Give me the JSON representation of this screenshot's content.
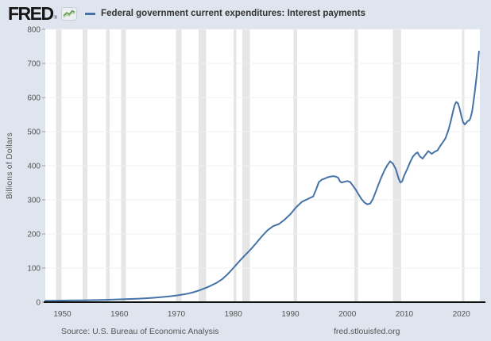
{
  "header": {
    "logo_text": "FRED",
    "registered_mark": "®",
    "legend_label": "Federal government current expenditures: Interest payments"
  },
  "footer": {
    "source": "Source: U.S. Bureau of Economic Analysis",
    "site_url": "fred.stlouisfed.org"
  },
  "colors": {
    "page_background": "#dee5ef",
    "plot_background": "#ffffff",
    "line": "#4572a7",
    "gridline": "#f0f0f0",
    "recession_band": "#e6e6e6",
    "axis_line": "#111111",
    "tick_mark": "#999999",
    "tick_text": "#555555",
    "logo_icon_green": "#5d9c45"
  },
  "chart_data": {
    "type": "line",
    "title": "Federal government current expenditures: Interest payments",
    "xlabel": "",
    "ylabel": "Billions of Dollars",
    "xlim": [
      1947,
      2023.25
    ],
    "ylim": [
      0,
      800
    ],
    "x_ticks": [
      1950,
      1960,
      1970,
      1980,
      1990,
      2000,
      2010,
      2020
    ],
    "y_ticks": [
      0,
      100,
      200,
      300,
      400,
      500,
      600,
      700,
      800
    ],
    "grid": "horizontal",
    "legend_position": "top-left",
    "recession_shading": [
      [
        1948.87,
        1949.83
      ],
      [
        1953.54,
        1954.38
      ],
      [
        1957.63,
        1958.29
      ],
      [
        1960.29,
        1961.13
      ],
      [
        1969.96,
        1970.88
      ],
      [
        1973.88,
        1975.21
      ],
      [
        1980.04,
        1980.54
      ],
      [
        1981.54,
        1982.88
      ],
      [
        1990.54,
        1991.21
      ],
      [
        2001.21,
        2001.88
      ],
      [
        2007.96,
        2009.46
      ],
      [
        2020.08,
        2020.45
      ]
    ],
    "series": [
      {
        "name": "Federal government current expenditures: Interest payments",
        "color": "#4572a7",
        "units": "Billions of Dollars",
        "points": [
          [
            1947,
            4
          ],
          [
            1948,
            4.3
          ],
          [
            1949,
            4.5
          ],
          [
            1950,
            4.7
          ],
          [
            1951,
            4.9
          ],
          [
            1952,
            5.1
          ],
          [
            1953,
            5.3
          ],
          [
            1954,
            5.5
          ],
          [
            1955,
            5.8
          ],
          [
            1956,
            6.1
          ],
          [
            1957,
            6.5
          ],
          [
            1958,
            6.9
          ],
          [
            1959,
            7.5
          ],
          [
            1960,
            8.1
          ],
          [
            1961,
            8.6
          ],
          [
            1962,
            9.2
          ],
          [
            1963,
            9.9
          ],
          [
            1964,
            10.7
          ],
          [
            1965,
            11.6
          ],
          [
            1966,
            12.8
          ],
          [
            1967,
            14.1
          ],
          [
            1968,
            15.7
          ],
          [
            1969,
            17.5
          ],
          [
            1970,
            19.5
          ],
          [
            1971,
            22
          ],
          [
            1972,
            25
          ],
          [
            1973,
            29
          ],
          [
            1974,
            34.5
          ],
          [
            1975,
            41
          ],
          [
            1976,
            48
          ],
          [
            1977,
            56
          ],
          [
            1978,
            67
          ],
          [
            1979,
            82
          ],
          [
            1980,
            100
          ],
          [
            1981,
            119
          ],
          [
            1982,
            137
          ],
          [
            1983,
            154
          ],
          [
            1984,
            173
          ],
          [
            1985,
            193
          ],
          [
            1986,
            211
          ],
          [
            1987,
            223
          ],
          [
            1988,
            229
          ],
          [
            1989,
            242
          ],
          [
            1990,
            258
          ],
          [
            1991,
            278
          ],
          [
            1992,
            294
          ],
          [
            1993,
            302
          ],
          [
            1994,
            310
          ],
          [
            1994.5,
            330
          ],
          [
            1995,
            352
          ],
          [
            1995.5,
            359
          ],
          [
            1996,
            362
          ],
          [
            1996.5,
            366
          ],
          [
            1997,
            368
          ],
          [
            1997.5,
            369.5
          ],
          [
            1998,
            368
          ],
          [
            1998.4,
            365
          ],
          [
            1998.7,
            354
          ],
          [
            1999,
            351
          ],
          [
            1999.5,
            353
          ],
          [
            2000,
            355
          ],
          [
            2000.5,
            352
          ],
          [
            2001,
            341
          ],
          [
            2001.5,
            329
          ],
          [
            2002,
            315
          ],
          [
            2002.5,
            302
          ],
          [
            2003,
            292
          ],
          [
            2003.5,
            287
          ],
          [
            2004,
            289
          ],
          [
            2004.5,
            303
          ],
          [
            2005,
            325
          ],
          [
            2005.5,
            347
          ],
          [
            2006,
            368
          ],
          [
            2006.5,
            386
          ],
          [
            2007,
            401
          ],
          [
            2007.5,
            413
          ],
          [
            2008,
            406
          ],
          [
            2008.5,
            390
          ],
          [
            2009,
            362
          ],
          [
            2009.3,
            351
          ],
          [
            2009.6,
            354
          ],
          [
            2010,
            372
          ],
          [
            2010.5,
            390
          ],
          [
            2011,
            410
          ],
          [
            2011.5,
            427
          ],
          [
            2012,
            436
          ],
          [
            2012.3,
            439
          ],
          [
            2012.7,
            428
          ],
          [
            2013.2,
            421
          ],
          [
            2013.7,
            432
          ],
          [
            2014.2,
            443
          ],
          [
            2014.8,
            435
          ],
          [
            2015.3,
            441
          ],
          [
            2015.8,
            445
          ],
          [
            2016.3,
            458
          ],
          [
            2016.8,
            470
          ],
          [
            2017.2,
            480
          ],
          [
            2017.7,
            503
          ],
          [
            2018.1,
            528
          ],
          [
            2018.5,
            556
          ],
          [
            2018.8,
            577
          ],
          [
            2019.1,
            587
          ],
          [
            2019.4,
            583
          ],
          [
            2019.7,
            568
          ],
          [
            2020,
            546
          ],
          [
            2020.3,
            528
          ],
          [
            2020.6,
            521
          ],
          [
            2020.9,
            526
          ],
          [
            2021.1,
            531
          ],
          [
            2021.4,
            533
          ],
          [
            2021.6,
            540
          ],
          [
            2021.9,
            560
          ],
          [
            2022.1,
            585
          ],
          [
            2022.35,
            615
          ],
          [
            2022.6,
            650
          ],
          [
            2022.85,
            690
          ],
          [
            2023.1,
            735
          ]
        ]
      }
    ]
  }
}
